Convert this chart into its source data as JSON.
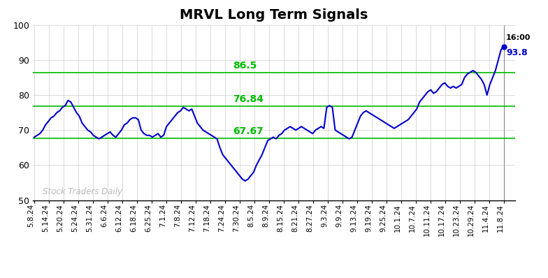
{
  "title": "MRVL Long Term Signals",
  "title_fontsize": 14,
  "title_fontweight": "bold",
  "ylim": [
    50,
    100
  ],
  "yticks": [
    50,
    60,
    70,
    80,
    90,
    100
  ],
  "hlines": [
    67.67,
    76.84,
    86.5
  ],
  "hline_color": "#00bb00",
  "hline_labels": [
    "86.5",
    "76.84",
    "67.67"
  ],
  "line_color": "#0000cc",
  "line_width": 1.5,
  "last_price": 93.8,
  "last_time": "16:00",
  "watermark": "Stock Traders Daily",
  "watermark_color": "#bbbbbb",
  "background_color": "#ffffff",
  "grid_color": "#cccccc",
  "xlabel_rotation": 90,
  "xtick_fontsize": 7.5,
  "ytick_fontsize": 9,
  "x_labels": [
    "5.8.24",
    "5.14.24",
    "5.20.24",
    "5.24.24",
    "5.31.24",
    "6.6.24",
    "6.12.24",
    "6.18.24",
    "6.25.24",
    "7.1.24",
    "7.8.24",
    "7.12.24",
    "7.18.24",
    "7.24.24",
    "7.30.24",
    "8.5.24",
    "8.9.24",
    "8.15.24",
    "8.21.24",
    "8.27.24",
    "9.3.24",
    "9.9.24",
    "9.13.24",
    "9.19.24",
    "9.25.24",
    "10.1.24",
    "10.7.24",
    "10.11.24",
    "10.17.24",
    "10.23.24",
    "10.29.24",
    "11.4.24",
    "11.8.24"
  ],
  "prices": [
    68.0,
    68.5,
    69.0,
    70.0,
    71.5,
    72.5,
    73.5,
    74.0,
    75.0,
    75.5,
    76.5,
    77.0,
    78.5,
    78.0,
    76.5,
    75.0,
    74.0,
    72.0,
    71.0,
    70.0,
    69.5,
    68.5,
    68.0,
    67.5,
    68.0,
    68.5,
    69.0,
    69.5,
    68.5,
    68.0,
    69.0,
    70.0,
    71.5,
    72.0,
    73.0,
    73.5,
    73.5,
    73.0,
    70.0,
    69.0,
    68.5,
    68.5,
    68.0,
    68.5,
    69.0,
    68.0,
    68.5,
    71.0,
    72.0,
    73.0,
    74.0,
    75.0,
    75.5,
    76.5,
    76.0,
    75.5,
    76.0,
    74.0,
    72.0,
    71.0,
    70.0,
    69.5,
    69.0,
    68.5,
    68.0,
    67.5,
    65.0,
    63.0,
    62.0,
    61.0,
    60.0,
    59.0,
    58.0,
    57.0,
    56.0,
    55.5,
    56.0,
    57.0,
    58.0,
    60.0,
    61.5,
    63.0,
    65.0,
    67.0,
    67.5,
    68.0,
    67.5,
    68.5,
    69.0,
    70.0,
    70.5,
    71.0,
    70.5,
    70.0,
    70.5,
    71.0,
    70.5,
    70.0,
    69.5,
    69.0,
    70.0,
    70.5,
    71.0,
    70.5,
    76.5,
    77.0,
    76.5,
    70.0,
    69.5,
    69.0,
    68.5,
    68.0,
    67.5,
    68.0,
    70.0,
    72.0,
    74.0,
    75.0,
    75.5,
    75.0,
    74.5,
    74.0,
    73.5,
    73.0,
    72.5,
    72.0,
    71.5,
    71.0,
    70.5,
    71.0,
    71.5,
    72.0,
    72.5,
    73.0,
    74.0,
    75.0,
    76.0,
    78.0,
    79.0,
    80.0,
    81.0,
    81.5,
    80.5,
    81.0,
    82.0,
    83.0,
    83.5,
    82.5,
    82.0,
    82.5,
    82.0,
    82.5,
    83.0,
    85.0,
    86.0,
    86.5,
    87.0,
    86.5,
    85.5,
    84.5,
    83.0,
    80.0,
    83.0,
    85.0,
    87.0,
    90.0,
    93.0,
    93.8
  ]
}
